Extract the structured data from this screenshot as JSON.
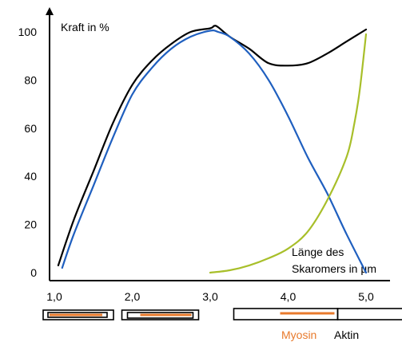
{
  "chart_data": {
    "type": "line",
    "ylabel": "Kraft in %",
    "xlabel_lines": [
      "Länge des",
      "Skaromers in µm"
    ],
    "x_ticks": [
      "1,0",
      "2,0",
      "3,0",
      "4,0",
      "5,0"
    ],
    "y_ticks": [
      "0",
      "20",
      "40",
      "60",
      "80",
      "100"
    ],
    "xlim": [
      1.0,
      5.0
    ],
    "ylim": [
      0,
      100
    ],
    "series": [
      {
        "name": "",
        "color": "#000000",
        "x": [
          1.05,
          1.25,
          1.5,
          1.75,
          2.0,
          2.25,
          2.5,
          2.75,
          3.0,
          3.05,
          3.1,
          3.25,
          3.5,
          3.75,
          4.0,
          4.25,
          4.5,
          4.75,
          5.0
        ],
        "y": [
          3,
          22,
          42,
          62,
          78,
          88,
          95,
          100,
          101.5,
          102.5,
          102,
          98,
          93,
          87,
          86,
          87,
          91,
          96,
          101
        ]
      },
      {
        "name": "",
        "color": "#1f5fbf",
        "x": [
          1.1,
          1.25,
          1.5,
          1.75,
          2.0,
          2.25,
          2.5,
          2.75,
          3.0,
          3.1,
          3.25,
          3.5,
          3.75,
          4.0,
          4.25,
          4.5,
          4.75,
          5.0
        ],
        "y": [
          2,
          16,
          36,
          56,
          74,
          85,
          93,
          98,
          100.5,
          100,
          98,
          91,
          80,
          65,
          48,
          33,
          16,
          0
        ]
      },
      {
        "name": "",
        "color": "#a8bf2a",
        "x": [
          3.0,
          3.25,
          3.5,
          3.75,
          4.0,
          4.25,
          4.5,
          4.75,
          4.85,
          4.92,
          5.0
        ],
        "y": [
          0,
          1,
          3,
          6,
          10,
          17,
          30,
          48,
          62,
          76,
          99
        ]
      }
    ],
    "legend_labels": {
      "myosin": "Myosin",
      "aktin": "Aktin"
    },
    "colors": {
      "axis": "#000000",
      "myosin": "#e87a2c"
    },
    "diagrams": [
      {
        "x": 1.0,
        "myosin_fraction": 1.0
      },
      {
        "x": 2.0,
        "myosin_fraction": 0.55
      },
      {
        "x": 4.0,
        "myosin_fraction": 0.55
      }
    ]
  }
}
